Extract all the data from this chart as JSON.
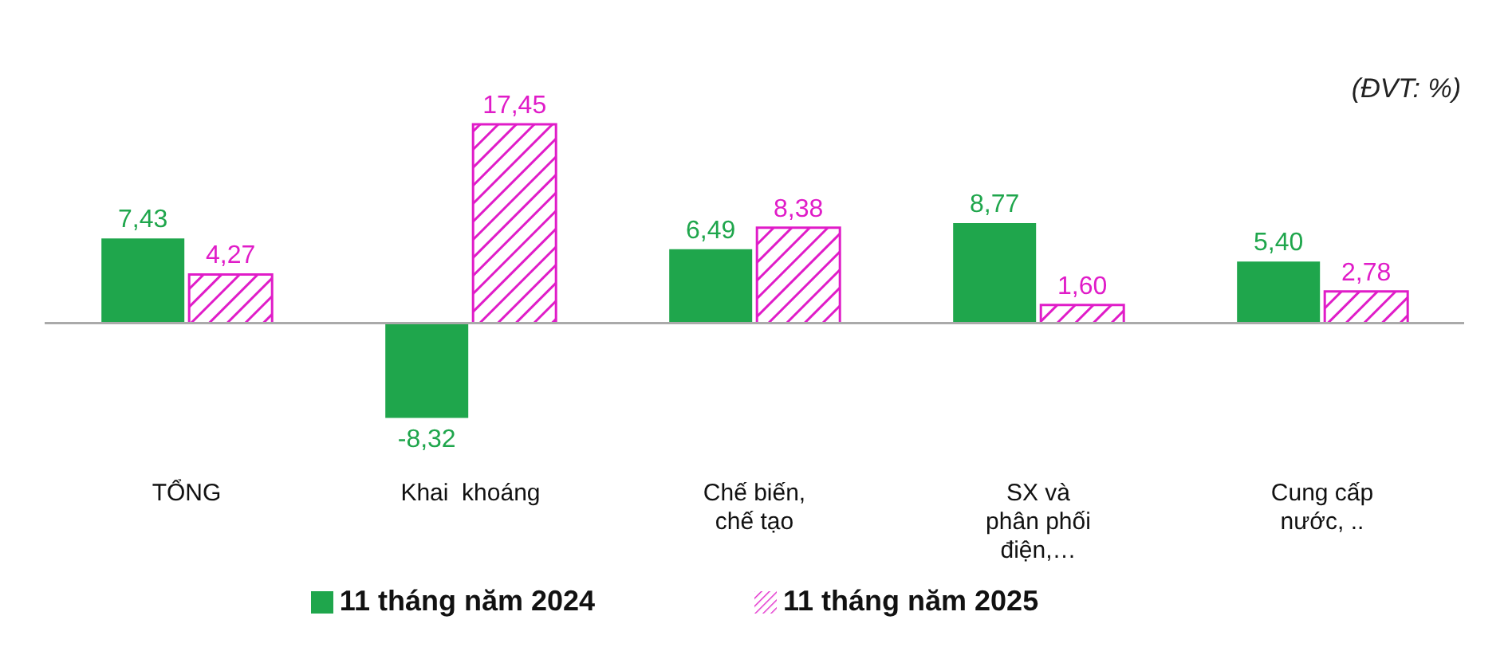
{
  "chart_data": {
    "type": "bar",
    "categories": [
      "TỔNG",
      "Khai  khoáng",
      "Chế biến,\nchế tạo",
      "SX và\nphân phối\nđiện,…",
      "Cung cấp\nnước, .."
    ],
    "series": [
      {
        "name": "11 tháng năm 2024",
        "color": "#1fa64c",
        "values": [
          7.43,
          -8.32,
          6.49,
          8.77,
          5.4
        ],
        "value_labels": [
          "7,43",
          "-8,32",
          "6,49",
          "8,77",
          "5,40"
        ]
      },
      {
        "name": "11 tháng năm 2025",
        "color": "#e01cc8",
        "values": [
          4.27,
          17.45,
          8.38,
          1.6,
          2.78
        ],
        "value_labels": [
          "4,27",
          "17,45",
          "8,38",
          "1,60",
          "2,78"
        ]
      }
    ],
    "annotations": [
      "(ĐVT: %)"
    ],
    "legend": "bottom"
  }
}
